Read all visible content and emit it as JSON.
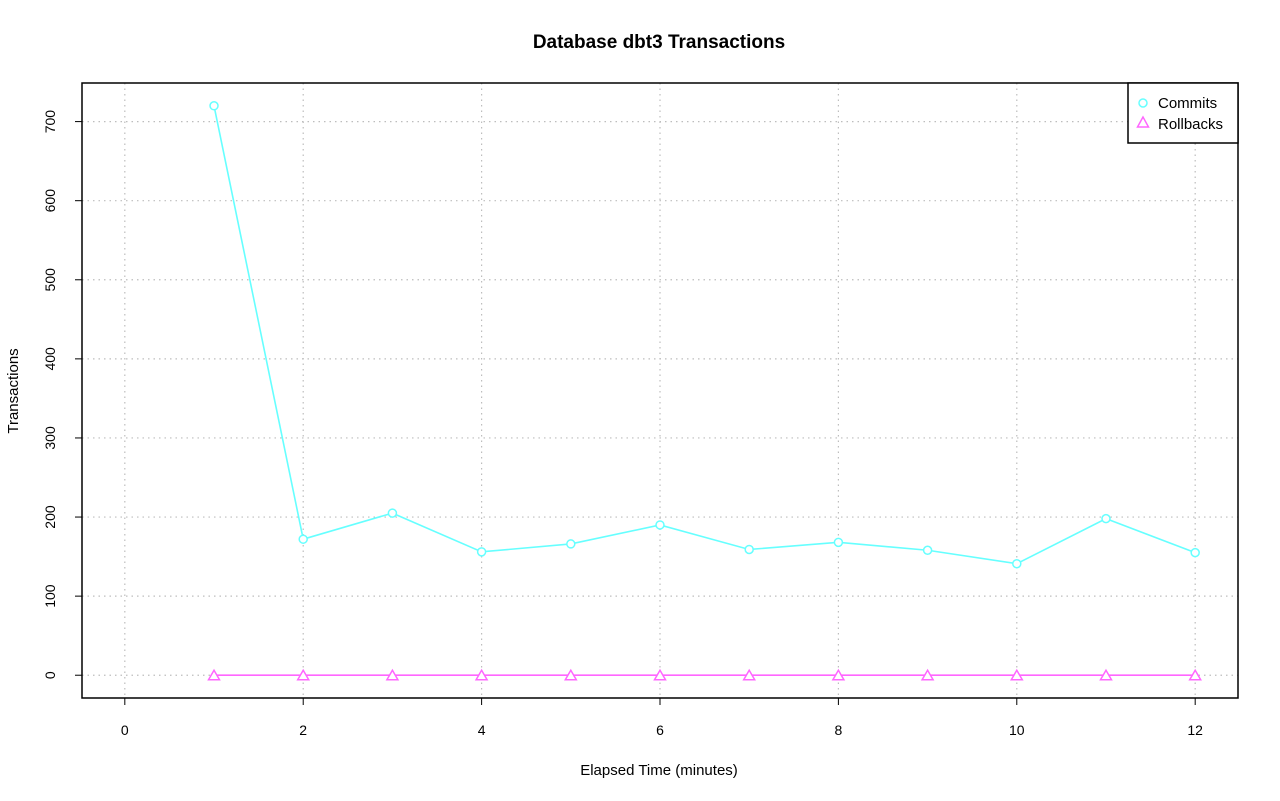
{
  "chart_data": {
    "type": "line",
    "title": "Database dbt3 Transactions",
    "xlabel": "Elapsed Time (minutes)",
    "ylabel": "Transactions",
    "xlim": [
      -0.48,
      12.48
    ],
    "ylim": [
      -28.8,
      748.8
    ],
    "x_ticks": [
      0,
      2,
      4,
      6,
      8,
      10,
      12
    ],
    "y_ticks": [
      0,
      100,
      200,
      300,
      400,
      500,
      600,
      700
    ],
    "grid": true,
    "legend_position": "top-right",
    "x": [
      1,
      2,
      3,
      4,
      5,
      6,
      7,
      8,
      9,
      10,
      11,
      12
    ],
    "series": [
      {
        "name": "Commits",
        "color": "#66ffff",
        "marker": "circle",
        "values": [
          720,
          172,
          205,
          156,
          166,
          190,
          159,
          168,
          158,
          141,
          198,
          155
        ]
      },
      {
        "name": "Rollbacks",
        "color": "#ff66ff",
        "marker": "triangle",
        "values": [
          0,
          0,
          0,
          0,
          0,
          0,
          0,
          0,
          0,
          0,
          0,
          0
        ]
      }
    ]
  }
}
